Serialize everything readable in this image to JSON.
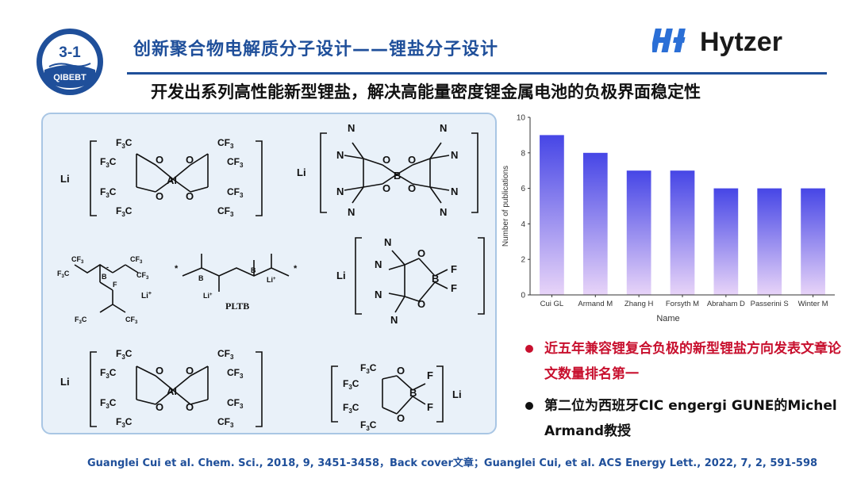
{
  "badge": {
    "number": "3-1",
    "org": "QIBEBT"
  },
  "header": {
    "title": "创新聚合物电解质分子设计——锂盐分子设计",
    "subtitle": "开发出系列高性能新型锂盐，解决高能量密度锂金属电池的负极界面稳定性"
  },
  "logo": {
    "text": "Hytzer",
    "color": "#1a1a1a",
    "mark_color": "#2b6fd6"
  },
  "structures": {
    "li": "Li",
    "cf3": "CF",
    "f3c": "F",
    "sub3": "3",
    "c": "C",
    "o": "O",
    "al": "Al",
    "b": "B",
    "f": "F",
    "n": "N",
    "minus": "-",
    "li_plus": "Li",
    "plus": "+",
    "pltb": "PLTB",
    "star": "*",
    "ominus": "⊖"
  },
  "chart_data": {
    "type": "bar",
    "categories": [
      "Cui GL",
      "Armand M",
      "Zhang H",
      "Forsyth M",
      "Abraham D",
      "Passerini S",
      "Winter M"
    ],
    "values": [
      9,
      8,
      7,
      7,
      6,
      6,
      6
    ],
    "xlabel": "Name",
    "ylabel": "Number of publications",
    "ylim": [
      0,
      10
    ],
    "yticks": [
      "0",
      "2",
      "4",
      "6",
      "8",
      "10"
    ],
    "bar_color_top": "#4646e6",
    "bar_color_bottom": "#e8d4f8",
    "grid": false
  },
  "notes": {
    "note1": "近五年兼容锂复合负极的新型锂盐方向发表文章论文数量排名第一",
    "note2": "第二位为西班牙CIC engergi GUNE的Michel Armand教授"
  },
  "citation": "Guanglei Cui et al. Chem. Sci., 2018, 9, 3451-3458，Back cover文章；Guanglei Cui, et al. ACS Energy Lett., 2022, 7, 2, 591-598",
  "colors": {
    "title_blue": "#1f4f9a",
    "accent_red": "#c8102e",
    "panel_fill": "#e9f1f9",
    "panel_border": "#a9c6e4"
  }
}
